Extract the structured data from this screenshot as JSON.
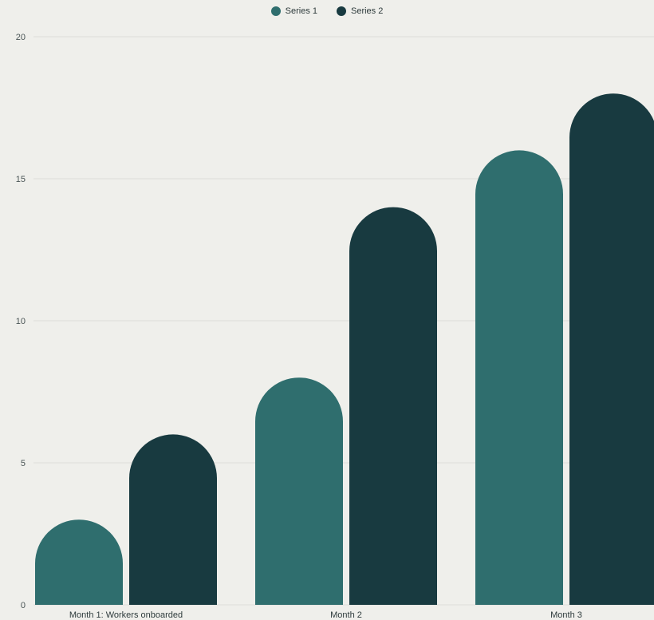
{
  "chart_data": {
    "type": "bar",
    "categories": [
      "Month 1: Workers onboarded",
      "Month 2",
      "Month 3"
    ],
    "series": [
      {
        "name": "Series 1",
        "color": "#2f6e6e",
        "values": [
          3,
          8,
          16
        ]
      },
      {
        "name": "Series 2",
        "color": "#183a40",
        "values": [
          6,
          14,
          18
        ]
      }
    ],
    "ylim": [
      0,
      20
    ],
    "yticks": [
      "0",
      "5",
      "10",
      "15",
      "20"
    ],
    "grid": true,
    "legend_position": "top-center"
  }
}
